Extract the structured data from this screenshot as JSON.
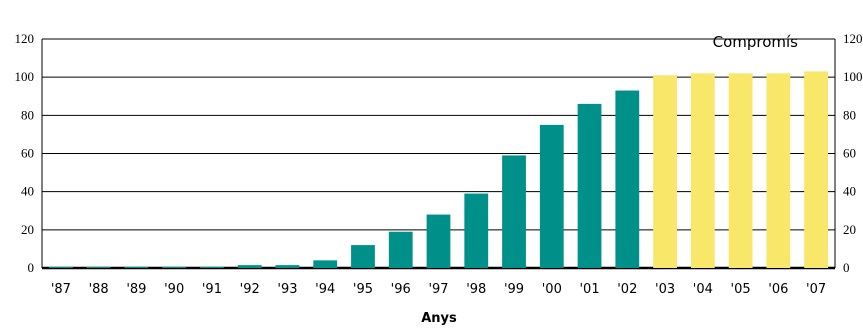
{
  "chart_data": {
    "type": "bar",
    "categories": [
      "'87",
      "'88",
      "'89",
      "'90",
      "'91",
      "'92",
      "'93",
      "'94",
      "'95",
      "'96",
      "'97",
      "'98",
      "'99",
      "'00",
      "'01",
      "'02",
      "'03",
      "'04",
      "'05",
      "'06",
      "'07"
    ],
    "series": [
      {
        "values": [
          0.5,
          0.5,
          0.5,
          0.5,
          0.5,
          1.5,
          1.5,
          4,
          12,
          19,
          28,
          39,
          59,
          75,
          86,
          93,
          null,
          null,
          null,
          null,
          null
        ],
        "color": "#00908a"
      },
      {
        "name": "Compromís",
        "values": [
          null,
          null,
          null,
          null,
          null,
          null,
          null,
          null,
          null,
          null,
          null,
          null,
          null,
          null,
          null,
          null,
          101,
          102,
          102,
          102,
          103
        ],
        "color": "#f9e76a"
      }
    ],
    "xlabel": "Anys",
    "ylabel": "",
    "ylim": [
      0,
      120
    ],
    "yticks": [
      0,
      20,
      40,
      60,
      80,
      100,
      120
    ],
    "grid": true,
    "right_axis": true,
    "legend_placement": "top-right"
  }
}
